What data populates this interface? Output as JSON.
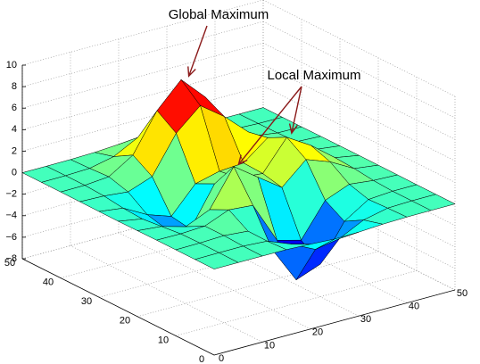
{
  "chart_data": {
    "type": "surface",
    "x": [
      0,
      5,
      10,
      15,
      20,
      25,
      30,
      35,
      40,
      45,
      50
    ],
    "y": [
      0,
      5,
      10,
      15,
      20,
      25,
      30,
      35,
      40,
      45,
      50
    ],
    "z": [
      [
        0,
        0,
        0,
        -0.01,
        -0.11,
        -0.24,
        -0.2,
        -0.07,
        -0.01,
        0,
        0
      ],
      [
        0,
        0.01,
        0.02,
        -0.12,
        -1,
        -2.09,
        -1.7,
        -0.58,
        -0.08,
        0,
        0
      ],
      [
        0,
        0.02,
        0.1,
        -0.09,
        -2.39,
        -5.83,
        -4.97,
        -1.6,
        -0.17,
        0,
        0
      ],
      [
        0,
        -0.02,
        0.1,
        1,
        0.81,
        -3.04,
        -3.64,
        -0.54,
        0.35,
        0.1,
        0.01
      ],
      [
        -0.02,
        -0.23,
        -0.86,
        0.12,
        3.52,
        1.93,
        0.36,
        2.36,
        1.54,
        0.31,
        0.02
      ],
      [
        -0.04,
        -0.43,
        -1.98,
        -2.58,
        1.02,
        0.98,
        0.77,
        3.53,
        2.17,
        0.43,
        0.03
      ],
      [
        -0.03,
        -0.32,
        -1.53,
        -2.29,
        0.13,
        0.69,
        0.85,
        2.59,
        1.52,
        0.3,
        0.02
      ],
      [
        -0.01,
        -0.09,
        -0.31,
        0.51,
        3.93,
        5.89,
        4.27,
        2.23,
        0.74,
        0.12,
        0.01
      ],
      [
        0,
        0.01,
        0.2,
        1.61,
        5.14,
        7.41,
        5.2,
        1.89,
        0.37,
        0.04,
        0
      ],
      [
        0,
        0.01,
        0.09,
        0.58,
        1.75,
        2.51,
        1.75,
        0.61,
        0.11,
        0.01,
        0
      ],
      [
        0,
        0,
        0.01,
        0.07,
        0.21,
        0.3,
        0.21,
        0.07,
        0.01,
        0,
        0
      ]
    ],
    "xlim": [
      0,
      50
    ],
    "ylim": [
      0,
      50
    ],
    "zlim": [
      -8,
      10
    ],
    "xticks": [
      0,
      10,
      20,
      30,
      40,
      50
    ],
    "yticks": [
      0,
      10,
      20,
      30,
      40,
      50
    ],
    "zticks": [
      {
        "value": -8,
        "label": "−8"
      },
      {
        "value": -6,
        "label": "−6"
      },
      {
        "value": -4,
        "label": "−4"
      },
      {
        "value": -2,
        "label": "−2"
      },
      0,
      2,
      4,
      6,
      8,
      10
    ],
    "grid": true,
    "colormap": "jet",
    "edge_color": "#000000",
    "annotations": [
      {
        "text": "Global Maximum",
        "color": "#8b1a1a",
        "points": [
          [
            25,
            38,
            8.1
          ]
        ]
      },
      {
        "text": "Local Maximum",
        "color": "#8b1a1a",
        "points": [
          [
            36,
            25,
            3.8
          ],
          [
            21,
            20,
            3.6
          ]
        ]
      }
    ]
  }
}
